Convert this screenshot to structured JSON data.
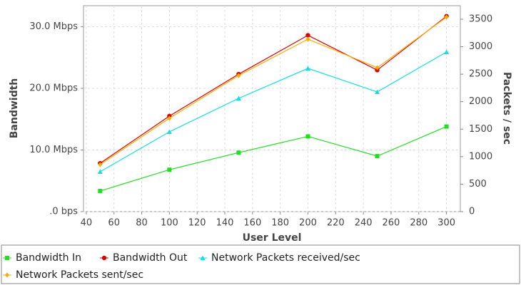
{
  "chart_data": {
    "type": "line",
    "x_label": "User Level",
    "y_label": "Bandwidth",
    "y2_label": "Packets / sec",
    "x": [
      50,
      100,
      150,
      200,
      250,
      300
    ],
    "xlim": [
      38,
      310
    ],
    "xticks": [
      40,
      60,
      80,
      100,
      120,
      140,
      160,
      180,
      200,
      220,
      240,
      260,
      280,
      300
    ],
    "ylim": [
      0,
      33.4
    ],
    "yticks": [
      {
        "value": 0,
        "label": ".0 bps"
      },
      {
        "value": 10,
        "label": "10.0 Mbps"
      },
      {
        "value": 20,
        "label": "20.0 Mbps"
      },
      {
        "value": 30,
        "label": "30.0 Mbps"
      }
    ],
    "y2lim": [
      0,
      3746
    ],
    "y2ticks": [
      0,
      500,
      1000,
      1500,
      2000,
      2500,
      3000,
      3500
    ],
    "grid": true,
    "legend": "bottom",
    "series": [
      {
        "name": "Bandwidth In",
        "color": "#22dd22",
        "marker": "square",
        "values": [
          3.35,
          6.8,
          9.57,
          12.2,
          9.0,
          13.8
        ]
      },
      {
        "name": "Bandwidth Out",
        "color": "#dd0000",
        "marker": "circle",
        "values": [
          7.84,
          15.5,
          22.3,
          28.6,
          22.95,
          31.7
        ]
      },
      {
        "name": "Network Packets received/sec",
        "color": "#11e0e0",
        "marker": "triangle",
        "axis": "y2",
        "values": [
          726,
          1452,
          2061,
          2606,
          2178,
          2904
        ]
      },
      {
        "name": "Network Packets sent/sec",
        "color": "#ffaa00",
        "marker": "diamond",
        "axis": "y2",
        "values": [
          856,
          1698,
          2476,
          3137,
          2619,
          3539
        ]
      }
    ]
  }
}
